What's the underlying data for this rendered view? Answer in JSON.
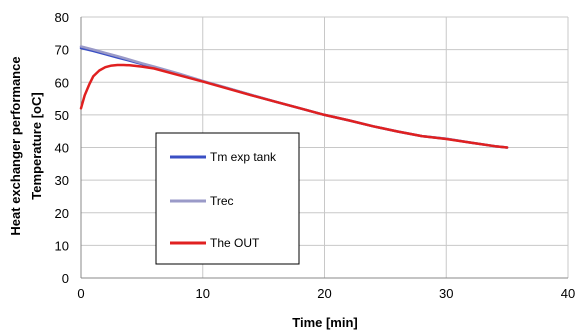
{
  "chart_data": {
    "type": "line",
    "xlabel": "Time  [min]",
    "ylabel": "Temperature [oC]",
    "outer_label": "Heat exchanger performance",
    "xlim": [
      0,
      40
    ],
    "ylim": [
      0,
      80
    ],
    "xticks": [
      0,
      10,
      20,
      30,
      40
    ],
    "yticks": [
      0,
      10,
      20,
      30,
      40,
      50,
      60,
      70,
      80
    ],
    "grid": true,
    "legend_position": "center-left",
    "series": [
      {
        "name": "Tm exp tank",
        "color": "#3a4fc4",
        "x": [
          0,
          1,
          2,
          3,
          4,
          5,
          6,
          8,
          10,
          12,
          14,
          16,
          18,
          20,
          22,
          24,
          26,
          28,
          30,
          32,
          34,
          35
        ],
        "y": [
          70.5,
          69.6,
          68.6,
          67.6,
          66.6,
          65.6,
          64.6,
          62.6,
          60.3,
          58.2,
          56.1,
          54.0,
          52.0,
          50.0,
          48.3,
          46.5,
          44.9,
          43.5,
          42.7,
          41.5,
          40.4,
          40.0
        ]
      },
      {
        "name": "Trec",
        "color": "#9a9ac8",
        "x": [
          0,
          1,
          2,
          3,
          4,
          5,
          6,
          8,
          10,
          12,
          14,
          16,
          18,
          20,
          22,
          24,
          26,
          28,
          30,
          32,
          34,
          35
        ],
        "y": [
          71.0,
          70.0,
          69.0,
          68.0,
          66.9,
          65.8,
          64.8,
          62.7,
          60.4,
          58.3,
          56.1,
          54.0,
          52.0,
          50.0,
          48.3,
          46.5,
          44.9,
          43.5,
          42.7,
          41.5,
          40.4,
          40.0
        ]
      },
      {
        "name": "The OUT",
        "color": "#e02020",
        "x": [
          0,
          0.3,
          0.7,
          1,
          1.5,
          2,
          2.5,
          3,
          3.5,
          4,
          5,
          6,
          8,
          10,
          12,
          14,
          16,
          18,
          20,
          22,
          24,
          26,
          28,
          30,
          32,
          34,
          35
        ],
        "y": [
          52,
          56,
          59.5,
          61.8,
          63.6,
          64.6,
          65.1,
          65.3,
          65.3,
          65.2,
          64.8,
          64.2,
          62.2,
          60.2,
          58.1,
          56.0,
          54.0,
          52.0,
          50.0,
          48.3,
          46.5,
          44.9,
          43.5,
          42.6,
          41.5,
          40.4,
          40.0
        ]
      }
    ]
  }
}
